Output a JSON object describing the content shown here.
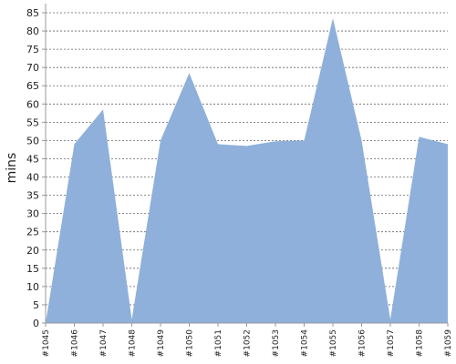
{
  "chart_data": {
    "type": "area",
    "categories": [
      "#1045",
      "#1046",
      "#1047",
      "#1048",
      "#1049",
      "#1050",
      "#1051",
      "#1052",
      "#1053",
      "#1054",
      "#1055",
      "#1056",
      "#1057",
      "#1058",
      "#1059"
    ],
    "values": [
      0,
      49,
      58.5,
      1,
      50,
      68.5,
      49,
      48.5,
      49.8,
      50,
      83.5,
      50,
      1,
      51,
      49
    ],
    "ylabel": "mins",
    "xlabel": "",
    "title": "",
    "ylim": [
      0,
      85
    ],
    "ytick_step": 5,
    "yticks": [
      "0",
      "5",
      "10",
      "15",
      "20",
      "25",
      "30",
      "35",
      "40",
      "45",
      "50",
      "55",
      "60",
      "65",
      "70",
      "75",
      "80",
      "85"
    ],
    "grid": true,
    "legend": "none",
    "fill_color": "#8fb0da"
  }
}
